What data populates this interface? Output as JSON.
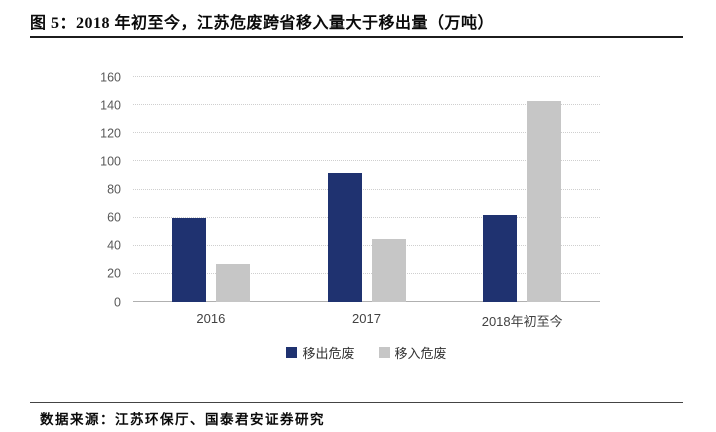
{
  "figure": {
    "title": "图 5：2018 年初至今，江苏危废跨省移入量大于移出量（万吨）",
    "source": "数据来源：江苏环保厅、国泰君安证券研究"
  },
  "colors": {
    "outflow_bar": "#1f3270",
    "inflow_bar": "#c6c6c6",
    "axis_text": "#595959",
    "gridline": "#cfcfcf",
    "rule": "#1c1c1c"
  },
  "chart_data": {
    "type": "bar",
    "categories": [
      "2016",
      "2017",
      "2018年初至今"
    ],
    "series": [
      {
        "name": "移出危废",
        "color": "#1f3270",
        "values": [
          60,
          92,
          62
        ]
      },
      {
        "name": "移入危废",
        "color": "#c6c6c6",
        "values": [
          27,
          45,
          143
        ]
      }
    ],
    "title": "图 5：2018 年初至今，江苏危废跨省移入量大于移出量（万吨）",
    "xlabel": "",
    "ylabel": "",
    "ylim": [
      0,
      160
    ],
    "yticks": [
      0,
      20,
      40,
      60,
      80,
      100,
      120,
      140,
      160
    ],
    "grid": true,
    "legend_position": "bottom"
  }
}
